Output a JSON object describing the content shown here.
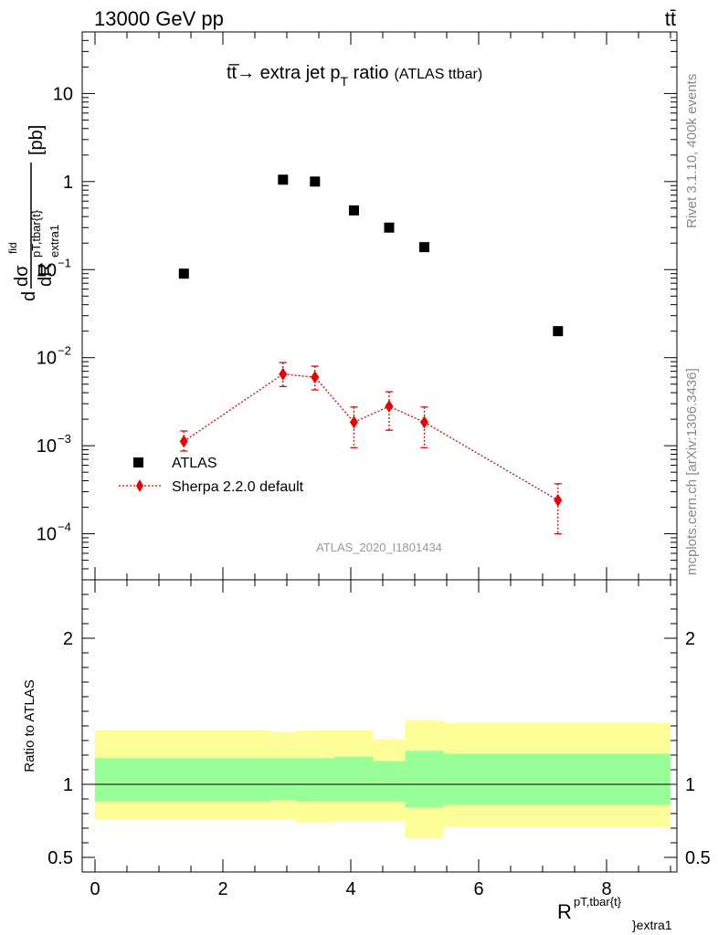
{
  "header": {
    "left": "13000 GeV pp",
    "right": "tt̄"
  },
  "side_labels": {
    "rivet": "Rivet 3.1.10,  400k events",
    "mcplots": "mcplots.cern.ch [arXiv:1306.3436]"
  },
  "title": {
    "main": "tt̅→ extra jet p",
    "sub": "T",
    "tail": " ratio",
    "small": "(ATLAS ttbar)"
  },
  "watermark": "ATLAS_2020_I1801434",
  "legend": {
    "atlas": "ATLAS",
    "sherpa": "Sherpa 2.2.0 default"
  },
  "colors": {
    "data": "#000000",
    "mc": "#ee0000",
    "band_inner": "#99ff99",
    "band_outer": "#ffff99"
  },
  "chart_data": [
    {
      "type": "scatter",
      "y_scale": "log",
      "ylim": [
        3e-05,
        50
      ],
      "xlim": [
        -0.2,
        9.1
      ],
      "ylabel": {
        "main": "d",
        "frac_num": "dσ",
        "frac_num_sup": "fid",
        "frac_den": "dR",
        "frac_den_sup": "pT,tbar{t}",
        "frac_den_sub": "extra1",
        "unit": "[pb]"
      },
      "y_ticks": [
        {
          "value": 0.0001,
          "base": "10",
          "exp": "−4"
        },
        {
          "value": 0.001,
          "base": "10",
          "exp": "−3"
        },
        {
          "value": 0.01,
          "base": "10",
          "exp": "−2"
        },
        {
          "value": 0.1,
          "base": "10",
          "exp": "−1"
        },
        {
          "value": 1,
          "base": "1",
          "exp": ""
        },
        {
          "value": 10,
          "base": "10",
          "exp": ""
        }
      ],
      "series": [
        {
          "name": "ATLAS",
          "x": [
            1.39,
            2.94,
            3.44,
            4.05,
            4.6,
            5.15,
            7.24
          ],
          "y": [
            0.09,
            1.05,
            1.0,
            0.47,
            0.3,
            0.18,
            0.02
          ]
        },
        {
          "name": "Sherpa 2.2.0 default",
          "x": [
            1.39,
            2.94,
            3.44,
            4.05,
            4.6,
            5.15,
            7.24
          ],
          "y": [
            0.00112,
            0.0065,
            0.006,
            0.00185,
            0.0028,
            0.00185,
            0.00024
          ],
          "y_err_up": [
            0.00035,
            0.0023,
            0.002,
            0.0009,
            0.0013,
            0.0009,
            0.00013
          ],
          "y_err_down": [
            0.00025,
            0.0018,
            0.0017,
            0.0009,
            0.0013,
            0.0009,
            0.00014
          ]
        }
      ]
    },
    {
      "type": "area",
      "ylim": [
        0.4,
        2.4
      ],
      "xlim": [
        -0.2,
        9.1
      ],
      "ylabel": "Ratio to ATLAS",
      "xlabel": {
        "main": "R",
        "sup": "pT,tbar{t}",
        "sub": "}extra1"
      },
      "y_ticks": [
        0.5,
        1,
        2
      ],
      "x_ticks": [
        0,
        2,
        4,
        6,
        8
      ],
      "bins": [
        {
          "lo": 0.0,
          "hi": 2.75,
          "inner": [
            0.88,
            1.18
          ],
          "outer": [
            0.76,
            1.37
          ]
        },
        {
          "lo": 2.75,
          "hi": 3.15,
          "inner": [
            0.89,
            1.18
          ],
          "outer": [
            0.76,
            1.36
          ]
        },
        {
          "lo": 3.15,
          "hi": 3.75,
          "inner": [
            0.88,
            1.18
          ],
          "outer": [
            0.74,
            1.37
          ]
        },
        {
          "lo": 3.75,
          "hi": 4.35,
          "inner": [
            0.88,
            1.19
          ],
          "outer": [
            0.75,
            1.37
          ]
        },
        {
          "lo": 4.35,
          "hi": 4.85,
          "inner": [
            0.88,
            1.16
          ],
          "outer": [
            0.75,
            1.31
          ]
        },
        {
          "lo": 4.85,
          "hi": 5.45,
          "inner": [
            0.84,
            1.23
          ],
          "outer": [
            0.63,
            1.44
          ]
        },
        {
          "lo": 5.45,
          "hi": 9.0,
          "inner": [
            0.86,
            1.21
          ],
          "outer": [
            0.71,
            1.42
          ]
        }
      ]
    }
  ]
}
